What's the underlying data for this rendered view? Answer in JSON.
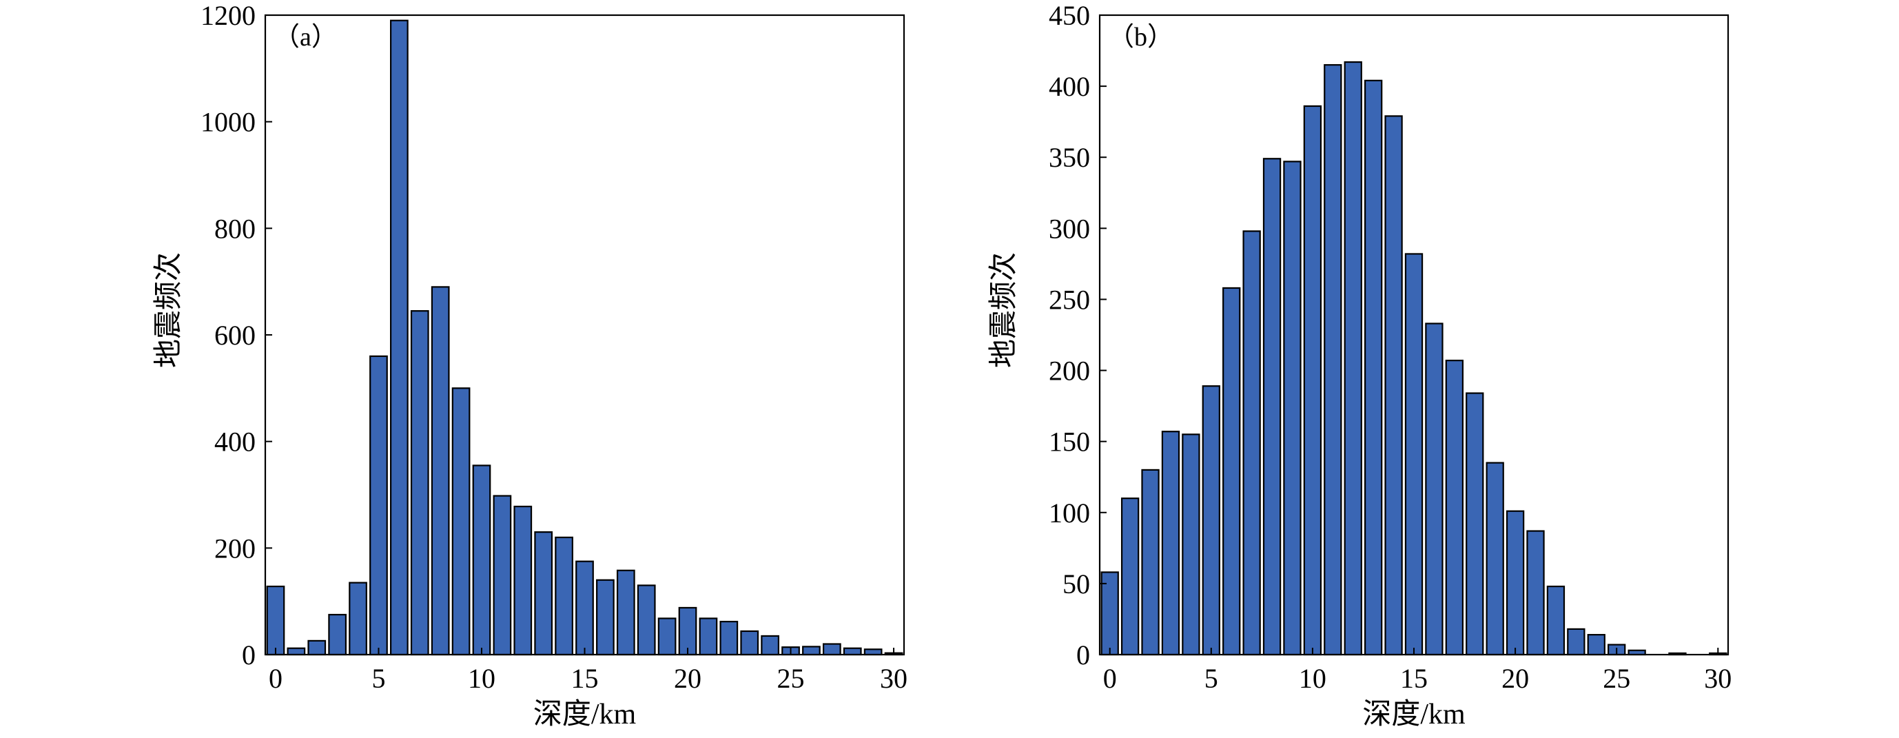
{
  "chart_data": [
    {
      "type": "bar",
      "panel_label": "（a）",
      "xlabel": "深度/km",
      "ylabel": "地震频次",
      "x": [
        0,
        1,
        2,
        3,
        4,
        5,
        6,
        7,
        8,
        9,
        10,
        11,
        12,
        13,
        14,
        15,
        16,
        17,
        18,
        19,
        20,
        21,
        22,
        23,
        24,
        25,
        26,
        27,
        28,
        29,
        30
      ],
      "values": [
        128,
        12,
        26,
        75,
        135,
        560,
        1190,
        645,
        690,
        500,
        355,
        298,
        278,
        230,
        220,
        175,
        140,
        158,
        130,
        68,
        88,
        68,
        62,
        44,
        35,
        14,
        15,
        20,
        12,
        10,
        3
      ],
      "xlim": [
        -0.5,
        30.5
      ],
      "ylim": [
        0,
        1200
      ],
      "xticks": [
        0,
        5,
        10,
        15,
        20,
        25,
        30
      ],
      "yticks": [
        0,
        200,
        400,
        600,
        800,
        1000,
        1200
      ],
      "bar_color": "#3a66b4",
      "grid": false
    },
    {
      "type": "bar",
      "panel_label": "（b）",
      "xlabel": "深度/km",
      "ylabel": "地震频次",
      "x": [
        0,
        1,
        2,
        3,
        4,
        5,
        6,
        7,
        8,
        9,
        10,
        11,
        12,
        13,
        14,
        15,
        16,
        17,
        18,
        19,
        20,
        21,
        22,
        23,
        24,
        25,
        26,
        27,
        28,
        29,
        30
      ],
      "values": [
        58,
        110,
        130,
        157,
        155,
        189,
        258,
        298,
        349,
        347,
        386,
        415,
        417,
        404,
        379,
        282,
        233,
        207,
        184,
        135,
        101,
        87,
        48,
        18,
        14,
        7,
        3,
        0,
        1,
        0,
        1
      ],
      "xlim": [
        -0.5,
        30.5
      ],
      "ylim": [
        0,
        450
      ],
      "xticks": [
        0,
        5,
        10,
        15,
        20,
        25,
        30
      ],
      "yticks": [
        0,
        50,
        100,
        150,
        200,
        250,
        300,
        350,
        400,
        450
      ],
      "bar_color": "#3a66b4",
      "grid": false
    }
  ]
}
